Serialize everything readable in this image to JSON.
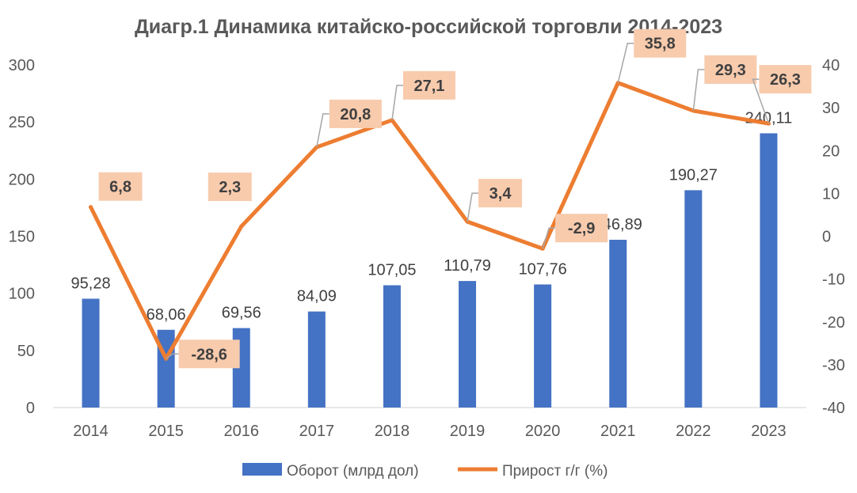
{
  "chart_data": {
    "type": "bar+line",
    "title": "Диагр.1 Динамика китайско-российской торговли 2014-2023",
    "categories": [
      "2014",
      "2015",
      "2016",
      "2017",
      "2018",
      "2019",
      "2020",
      "2021",
      "2022",
      "2023"
    ],
    "series": [
      {
        "name": "Оборот (млрд дол)",
        "type": "bar",
        "axis": "left",
        "color": "#4472C4",
        "values": [
          95.28,
          68.06,
          69.56,
          84.09,
          107.05,
          110.79,
          107.76,
          146.89,
          190.27,
          240.11
        ],
        "labels": [
          "95,28",
          "68,06",
          "69,56",
          "84,09",
          "107,05",
          "110,79",
          "107,76",
          "146,89",
          "190,27",
          "240,11"
        ]
      },
      {
        "name": "Прирост г/г (%)",
        "type": "line",
        "axis": "right",
        "color": "#ED7D31",
        "label_bg": "#F8CBAD",
        "values": [
          6.8,
          -28.6,
          2.3,
          20.8,
          27.1,
          3.4,
          -2.9,
          35.8,
          29.3,
          26.3
        ],
        "labels": [
          "6,8",
          "-28,6",
          "2,3",
          "20,8",
          "27,1",
          "3,4",
          "-2,9",
          "35,8",
          "29,3",
          "26,3"
        ]
      }
    ],
    "y_left": {
      "min": 0,
      "max": 300,
      "ticks": [
        "0",
        "50",
        "100",
        "150",
        "200",
        "250",
        "300"
      ]
    },
    "y_right": {
      "min": -40,
      "max": 40,
      "ticks": [
        "-40",
        "-30",
        "-20",
        "-10",
        "0",
        "10",
        "20",
        "30",
        "40"
      ]
    },
    "grid": false,
    "legend_position": "bottom"
  }
}
